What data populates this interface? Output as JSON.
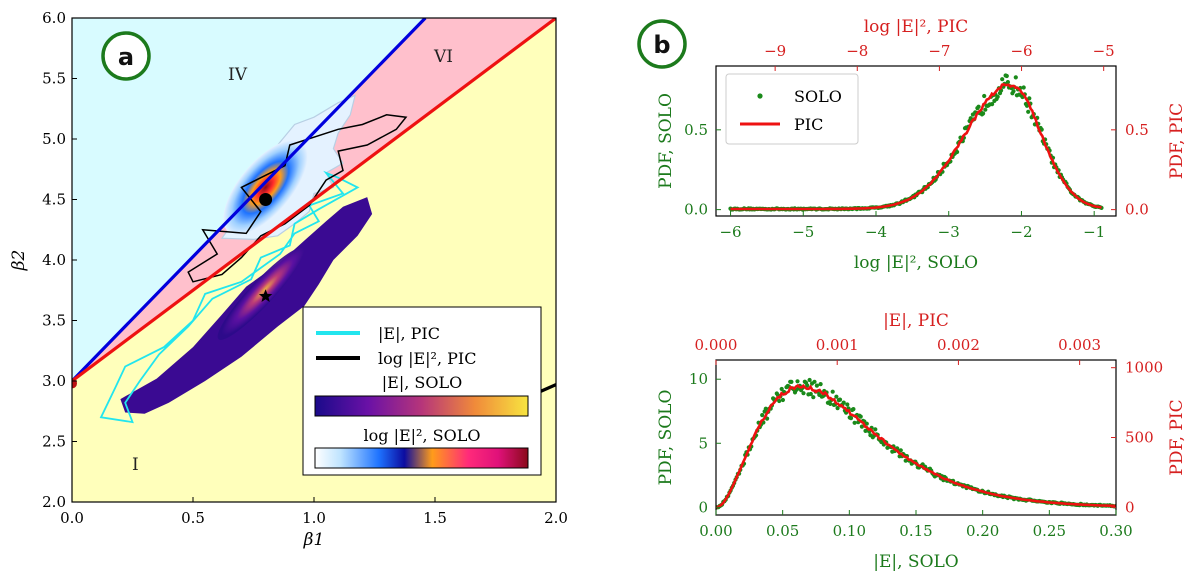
{
  "chart_data": [
    {
      "id": "a",
      "type": "contour",
      "panel_label": "a",
      "xlabel": "β1",
      "ylabel": "β2",
      "xlim": [
        0.0,
        2.0
      ],
      "ylim": [
        2.0,
        6.0
      ],
      "xticks": [
        "0.0",
        "0.5",
        "1.0",
        "1.5",
        "2.0"
      ],
      "yticks": [
        "2.0",
        "2.5",
        "3.0",
        "3.5",
        "4.0",
        "4.5",
        "5.0",
        "5.5",
        "6.0"
      ],
      "regions": [
        "IV",
        "VI",
        "I"
      ],
      "boundary_lines": [
        {
          "color": "#0000dd",
          "points": [
            [
              0.0,
              3.0
            ],
            [
              1.46,
              6.0
            ]
          ]
        },
        {
          "color": "#ee1111",
          "points": [
            [
              0.0,
              3.0
            ],
            [
              2.0,
              6.0
            ]
          ]
        },
        {
          "color": "#000000",
          "points": [
            [
              1.92,
              2.9
            ],
            [
              2.0,
              2.97
            ]
          ]
        }
      ],
      "markers": [
        {
          "shape": "circle",
          "x": 0.8,
          "y": 4.5
        },
        {
          "shape": "star",
          "x": 0.8,
          "y": 3.7
        },
        {
          "shape": "circle-red",
          "x": 0.0,
          "y": 2.98
        }
      ],
      "legend": {
        "position": "lower-right",
        "entries": [
          {
            "label": "|E|, PIC",
            "color": "#22e5ee"
          },
          {
            "label": "log |E|², PIC",
            "color": "#000000"
          }
        ],
        "colorbars": [
          {
            "label": "|E|, SOLO",
            "colormap": "plasma"
          },
          {
            "label": "log |E|², SOLO",
            "colormap": "custom"
          }
        ]
      }
    },
    {
      "id": "b-top",
      "type": "scatter+line",
      "panel_label": "b",
      "xlabel": "log |E|², SOLO",
      "ylabel": "PDF, SOLO",
      "ylabel_right": "PDF, PIC",
      "xlabel_top": "log |E|², PIC",
      "xlim": [
        -6.2,
        -0.7
      ],
      "ylim": [
        -0.04,
        0.9
      ],
      "xticks": [
        "−6",
        "−5",
        "−4",
        "−3",
        "−2",
        "−1"
      ],
      "yticks": [
        "0.0",
        "0.5"
      ],
      "xticks_top": [
        "−9",
        "−8",
        "−7",
        "−6",
        "−5"
      ],
      "xticks_top_values": [
        -9,
        -8,
        -7,
        -6,
        -5
      ],
      "top_axis_range": [
        -9.72,
        -4.85
      ],
      "yticks_right": [
        "0.0",
        "0.5"
      ],
      "series": [
        {
          "name": "SOLO",
          "style": "dots",
          "color": "#1a8a1a"
        },
        {
          "name": "PIC",
          "style": "line",
          "color": "#ee1111"
        }
      ],
      "peak": {
        "x": -2.15,
        "y": 0.78
      }
    },
    {
      "id": "b-bottom",
      "type": "scatter+line",
      "xlabel": "|E|, SOLO",
      "ylabel": "PDF, SOLO",
      "ylabel_right": "PDF, PIC",
      "xlabel_top": "|E|, PIC",
      "xlim": [
        0.0,
        0.3
      ],
      "ylim": [
        -0.6,
        11.5
      ],
      "xticks": [
        "0.00",
        "0.05",
        "0.10",
        "0.15",
        "0.20",
        "0.25",
        "0.30"
      ],
      "yticks": [
        "0",
        "5",
        "10"
      ],
      "xticks_top": [
        "0.000",
        "0.001",
        "0.002",
        "0.003"
      ],
      "xticks_top_values": [
        0.0,
        0.001,
        0.002,
        0.003
      ],
      "top_axis_range": [
        0.0,
        0.0033
      ],
      "yticks_right": [
        "0",
        "500",
        "1000"
      ],
      "series": [
        {
          "name": "SOLO",
          "style": "dots",
          "color": "#1a8a1a"
        },
        {
          "name": "PIC",
          "style": "line",
          "color": "#ee1111"
        }
      ],
      "peak": {
        "x": 0.058,
        "y": 9.3
      }
    }
  ]
}
